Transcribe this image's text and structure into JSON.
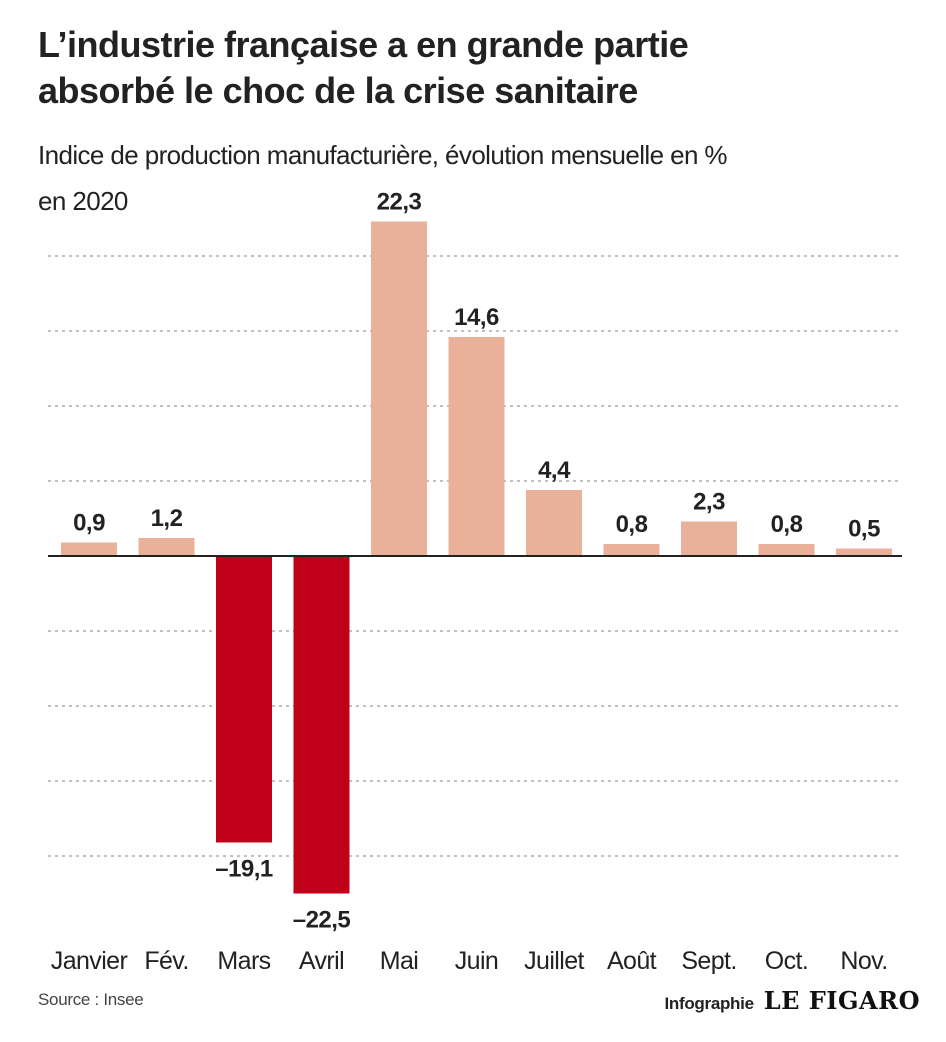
{
  "header": {
    "title_line1": "L’industrie française a en grande partie",
    "title_line2": "absorbé le choc de la crise sanitaire",
    "subtitle_line1": "Indice de production manufacturière, évolution mensuelle en %",
    "subtitle_line2": "en 2020"
  },
  "footer": {
    "source": "Source : Insee",
    "credit_label": "Infographie",
    "logo_text": "LE FIGARO"
  },
  "colors": {
    "positive": "#e9b09a",
    "negative": "#c1001a",
    "grid": "#9a9a9a",
    "zero_line": "#222222"
  },
  "chart_data": {
    "type": "bar",
    "title": "L’industrie française a en grande partie absorbé le choc de la crise sanitaire",
    "subtitle": "Indice de production manufacturière, évolution mensuelle en % en 2020",
    "categories": [
      "Janvier",
      "Fév.",
      "Mars",
      "Avril",
      "Mai",
      "Juin",
      "Juillet",
      "Août",
      "Sept.",
      "Oct.",
      "Nov."
    ],
    "values": [
      0.9,
      1.2,
      -19.1,
      -22.5,
      22.3,
      14.6,
      4.4,
      0.8,
      2.3,
      0.8,
      0.5
    ],
    "value_labels": [
      "0,9",
      "1,2",
      "–19,1",
      "–22,5",
      "22,3",
      "14,6",
      "4,4",
      "0,8",
      "2,3",
      "0,8",
      "0,5"
    ],
    "ylim": [
      -25,
      20
    ],
    "grid": true,
    "grid_step": 5,
    "legend": "none"
  }
}
